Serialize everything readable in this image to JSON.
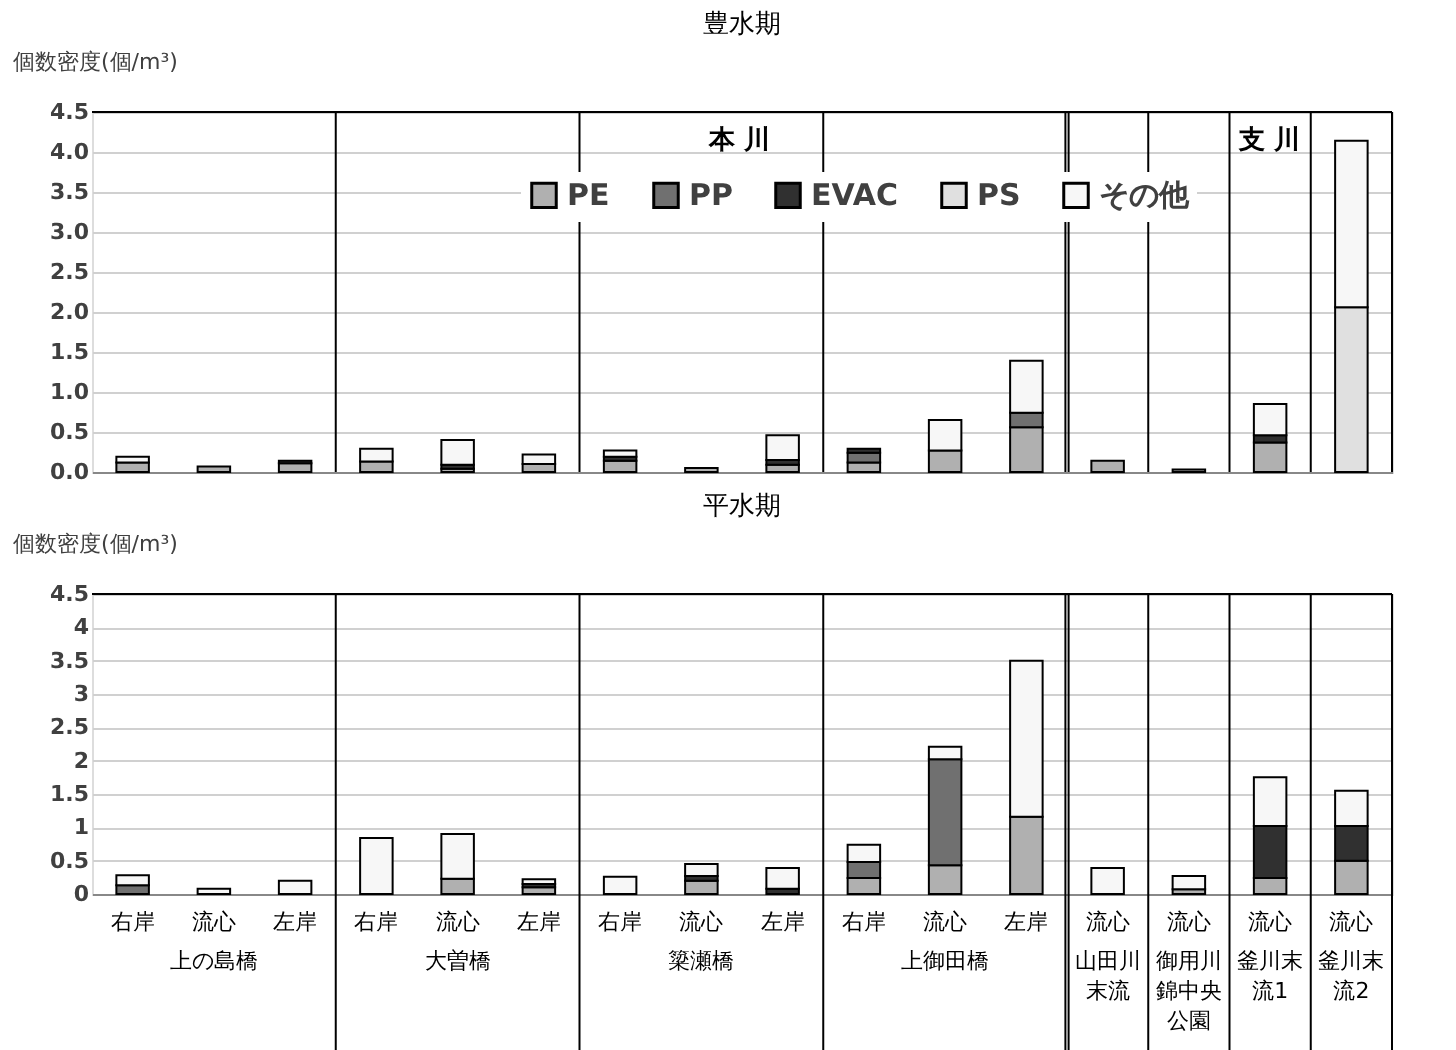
{
  "chart_data": [
    {
      "type": "bar",
      "stacked": true,
      "title": "豊水期",
      "ylabel": "個数密度(個/m³)",
      "categories": [
        "右岸",
        "流心",
        "左岸",
        "右岸",
        "流心",
        "左岸",
        "右岸",
        "流心",
        "左岸",
        "右岸",
        "流心",
        "左岸",
        "流心",
        "流心",
        "流心",
        "流心"
      ],
      "series": [
        {
          "name": "PE",
          "color": "#b0b0b0",
          "values": [
            0.12,
            0.07,
            0.11,
            0.13,
            0.04,
            0.1,
            0.14,
            0.05,
            0.09,
            0.12,
            0.27,
            0.56,
            0.14,
            0.03,
            0.37,
            null
          ]
        },
        {
          "name": "PP",
          "color": "#707070",
          "values": [
            null,
            null,
            null,
            null,
            null,
            null,
            null,
            null,
            null,
            0.12,
            null,
            0.18,
            null,
            null,
            null,
            null
          ]
        },
        {
          "name": "EVAC",
          "color": "#303030",
          "values": [
            null,
            null,
            0.03,
            null,
            0.05,
            null,
            0.05,
            null,
            0.06,
            0.05,
            null,
            null,
            null,
            null,
            0.09,
            null
          ]
        },
        {
          "name": "PS",
          "color": "#e0e0e0",
          "values": [
            null,
            null,
            null,
            null,
            null,
            null,
            null,
            null,
            null,
            null,
            null,
            null,
            null,
            null,
            null,
            2.06
          ]
        },
        {
          "name": "その他",
          "color": "#f7f7f7",
          "values": [
            0.07,
            null,
            null,
            0.16,
            0.31,
            0.12,
            0.08,
            null,
            0.31,
            null,
            0.38,
            0.65,
            null,
            null,
            0.39,
            2.08
          ]
        }
      ],
      "ylim": [
        0,
        4.5
      ],
      "yticks": [
        {
          "value": 0,
          "label": "0.0"
        },
        {
          "value": 0.5,
          "label": "0.5"
        },
        {
          "value": 1,
          "label": "1.0"
        },
        {
          "value": 1.5,
          "label": "1.5"
        },
        {
          "value": 2,
          "label": "2.0"
        },
        {
          "value": 2.5,
          "label": "2.5"
        },
        {
          "value": 3,
          "label": "3.0"
        },
        {
          "value": 3.5,
          "label": "3.5"
        },
        {
          "value": 4,
          "label": "4.0"
        },
        {
          "value": 4.5,
          "label": "4.5"
        }
      ],
      "grid": "y",
      "legend": "top",
      "tick_labels": "y",
      "annotations": [
        "本 川",
        "支 川"
      ]
    },
    {
      "type": "bar",
      "stacked": true,
      "title": "平水期",
      "ylabel": "個数密度(個/m³)",
      "categories": [
        "右岸",
        "流心",
        "左岸",
        "右岸",
        "流心",
        "左岸",
        "右岸",
        "流心",
        "左岸",
        "右岸",
        "流心",
        "左岸",
        "流心",
        "流心",
        "流心",
        "流心"
      ],
      "series": [
        {
          "name": "PE",
          "color": "#b0b0b0",
          "values": [
            null,
            null,
            null,
            null,
            0.23,
            0.1,
            null,
            0.2,
            null,
            0.24,
            0.43,
            1.16,
            null,
            0.07,
            0.24,
            0.5
          ]
        },
        {
          "name": "PP",
          "color": "#707070",
          "values": [
            0.13,
            null,
            null,
            null,
            null,
            null,
            null,
            null,
            null,
            0.24,
            1.59,
            null,
            null,
            null,
            null,
            null
          ]
        },
        {
          "name": "EVAC",
          "color": "#303030",
          "values": [
            null,
            null,
            null,
            null,
            null,
            0.05,
            null,
            0.07,
            0.08,
            null,
            null,
            null,
            null,
            null,
            0.78,
            0.52
          ]
        },
        {
          "name": "PS",
          "color": "#e0e0e0",
          "values": [
            null,
            null,
            null,
            null,
            null,
            null,
            null,
            null,
            null,
            null,
            null,
            null,
            null,
            null,
            null,
            null
          ]
        },
        {
          "name": "その他",
          "color": "#f7f7f7",
          "values": [
            0.15,
            0.08,
            0.2,
            0.84,
            0.67,
            0.07,
            0.26,
            0.18,
            0.31,
            0.26,
            0.19,
            2.34,
            0.39,
            0.2,
            0.73,
            0.53
          ]
        }
      ],
      "ylim": [
        0,
        4.5
      ],
      "yticks": [
        0,
        0.5,
        1,
        1.5,
        2,
        2.5,
        3,
        3.5,
        4,
        4.5
      ],
      "grid": "y",
      "legend": "top",
      "annotations": [
        "上の島橋",
        "大曽橋",
        "簗瀬橋",
        "上御田橋",
        "山田川末流",
        "御用川錦中央公園",
        "釜川末流1",
        "釜川末流2"
      ]
    }
  ]
}
